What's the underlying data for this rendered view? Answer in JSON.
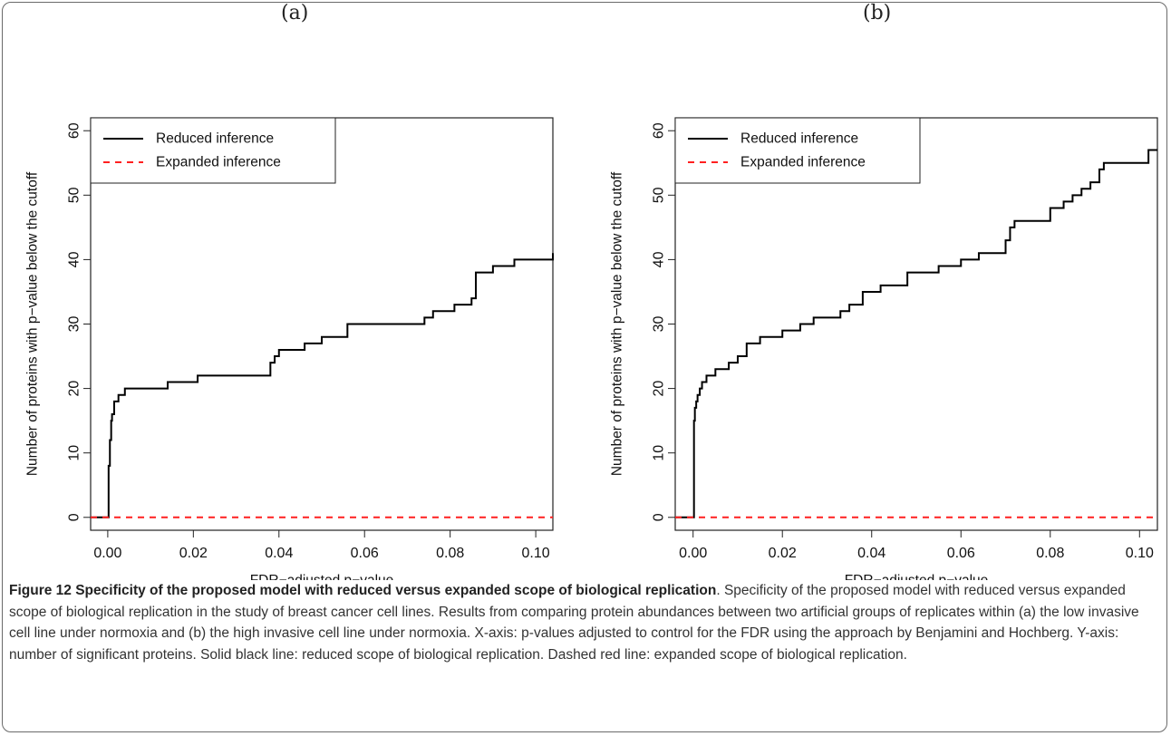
{
  "panel_labels": [
    "(a)",
    "(b)"
  ],
  "caption": {
    "title": "Figure 12 Specificity of the proposed model with reduced versus expanded scope of biological replication",
    "text": ". Specificity of the proposed model with reduced versus expanded scope of biological replication in the study of breast cancer cell lines. Results from comparing protein abundances between two artificial groups of replicates within (a) the low invasive cell line under normoxia and (b) the high invasive cell line under normoxia. X-axis: p-values adjusted to control for the FDR using the approach by Benjamini and Hochberg. Y-axis: number of significant proteins. Solid black line: reduced scope of biological replication. Dashed red line: expanded scope of biological replication."
  },
  "colors": {
    "reduced": "#000000",
    "expanded": "#ff2020"
  },
  "chart_data": [
    {
      "type": "line",
      "panel": "(a)",
      "xlabel": "FDR−adjusted p−value",
      "ylabel": "Number of proteins with p−value below the cutoff",
      "xlim": [
        -0.004,
        0.104
      ],
      "ylim": [
        -2,
        62
      ],
      "xticks": [
        0.0,
        0.02,
        0.04,
        0.06,
        0.08,
        0.1
      ],
      "xtick_labels": [
        "0.00",
        "0.02",
        "0.04",
        "0.06",
        "0.08",
        "0.10"
      ],
      "yticks": [
        0,
        10,
        20,
        30,
        40,
        50,
        60
      ],
      "ytick_labels": [
        "0",
        "10",
        "20",
        "30",
        "40",
        "50",
        "60"
      ],
      "legend": {
        "position": "top-left",
        "entries": [
          "Reduced inference",
          "Expanded inference"
        ]
      },
      "series": [
        {
          "name": "Reduced inference",
          "style": "solid-step",
          "x": [
            -0.004,
            0.0,
            0.0002,
            0.0005,
            0.0008,
            0.001,
            0.0015,
            0.0025,
            0.004,
            0.014,
            0.021,
            0.038,
            0.039,
            0.04,
            0.046,
            0.05,
            0.056,
            0.074,
            0.076,
            0.081,
            0.085,
            0.086,
            0.09,
            0.095,
            0.104
          ],
          "y": [
            0,
            0,
            8,
            12,
            15,
            16,
            18,
            19,
            20,
            21,
            22,
            24,
            25,
            26,
            27,
            28,
            30,
            31,
            32,
            33,
            34,
            38,
            39,
            40,
            41
          ]
        },
        {
          "name": "Expanded inference",
          "style": "dashed",
          "x": [
            -0.004,
            0.104
          ],
          "y": [
            0,
            0
          ]
        }
      ]
    },
    {
      "type": "line",
      "panel": "(b)",
      "xlabel": "FDR−adjusted p−value",
      "ylabel": "Number of proteins with p−value below the cutoff",
      "xlim": [
        -0.004,
        0.104
      ],
      "ylim": [
        -2,
        62
      ],
      "xticks": [
        0.0,
        0.02,
        0.04,
        0.06,
        0.08,
        0.1
      ],
      "xtick_labels": [
        "0.00",
        "0.02",
        "0.04",
        "0.06",
        "0.08",
        "0.10"
      ],
      "yticks": [
        0,
        10,
        20,
        30,
        40,
        50,
        60
      ],
      "ytick_labels": [
        "0",
        "10",
        "20",
        "30",
        "40",
        "50",
        "60"
      ],
      "legend": {
        "position": "top-left",
        "entries": [
          "Reduced inference",
          "Expanded inference"
        ]
      },
      "series": [
        {
          "name": "Reduced inference",
          "style": "solid-step",
          "x": [
            -0.004,
            0.0,
            0.0002,
            0.0004,
            0.0007,
            0.001,
            0.0015,
            0.002,
            0.003,
            0.005,
            0.008,
            0.01,
            0.012,
            0.015,
            0.02,
            0.024,
            0.027,
            0.033,
            0.035,
            0.038,
            0.042,
            0.048,
            0.052,
            0.055,
            0.06,
            0.064,
            0.07,
            0.071,
            0.072,
            0.08,
            0.083,
            0.085,
            0.087,
            0.089,
            0.091,
            0.092,
            0.094,
            0.102,
            0.104
          ],
          "y": [
            0,
            0,
            15,
            17,
            18,
            19,
            20,
            21,
            22,
            23,
            24,
            25,
            27,
            28,
            29,
            30,
            31,
            32,
            33,
            35,
            36,
            38,
            38,
            39,
            40,
            41,
            43,
            45,
            46,
            48,
            49,
            50,
            51,
            52,
            54,
            55,
            55,
            57,
            57
          ]
        },
        {
          "name": "Expanded inference",
          "style": "dashed",
          "x": [
            -0.004,
            0.104
          ],
          "y": [
            0,
            0
          ]
        }
      ]
    }
  ]
}
